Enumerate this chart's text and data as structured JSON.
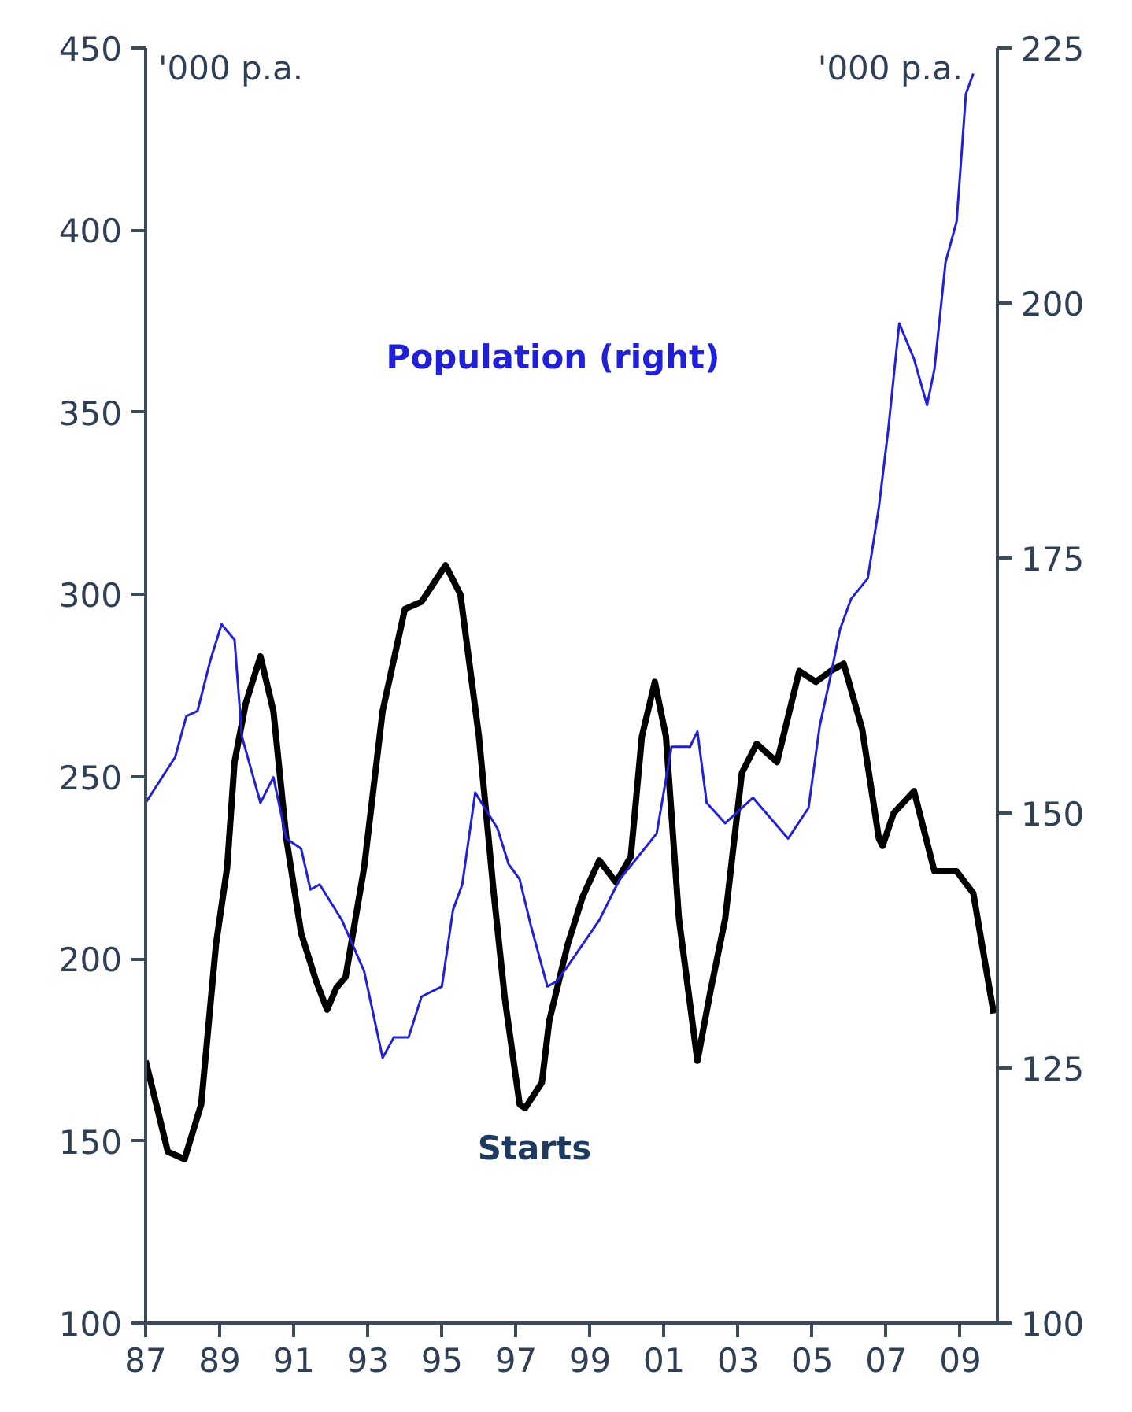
{
  "chart_data": {
    "type": "line",
    "ylabel": "'000 p.a.",
    "y2label": "'000 p.a.",
    "legend": false,
    "grid": false,
    "xlim": [
      1987,
      2010
    ],
    "xticks": [
      {
        "value": 1987,
        "label": "87"
      },
      {
        "value": 1989,
        "label": "89"
      },
      {
        "value": 1991,
        "label": "91"
      },
      {
        "value": 1993,
        "label": "93"
      },
      {
        "value": 1995,
        "label": "95"
      },
      {
        "value": 1997,
        "label": "97"
      },
      {
        "value": 1999,
        "label": "99"
      },
      {
        "value": 2001,
        "label": "01"
      },
      {
        "value": 2003,
        "label": "03"
      },
      {
        "value": 2005,
        "label": "05"
      },
      {
        "value": 2007,
        "label": "07"
      },
      {
        "value": 2009,
        "label": "09"
      }
    ],
    "ylim": [
      100,
      450
    ],
    "yticks": [
      100,
      150,
      200,
      250,
      300,
      350,
      400,
      450
    ],
    "y2lim": [
      100,
      225
    ],
    "y2ticks": [
      100,
      125,
      150,
      175,
      200,
      225
    ],
    "series": [
      {
        "name": "Starts",
        "color": "#000000",
        "x": [
          1987.0,
          1987.6,
          1988.05,
          1988.5,
          1988.9,
          1989.2,
          1989.4,
          1989.7,
          1990.1,
          1990.45,
          1990.8,
          1991.2,
          1991.6,
          1991.9,
          1992.15,
          1992.4,
          1992.9,
          1993.4,
          1994.0,
          1994.45,
          1995.1,
          1995.5,
          1996.0,
          1996.4,
          1996.7,
          1997.1,
          1997.25,
          1997.7,
          1997.9,
          1998.4,
          1998.8,
          1999.25,
          1999.7,
          2000.1,
          2000.4,
          2000.75,
          2001.05,
          2001.4,
          2001.9,
          2002.25,
          2002.65,
          2003.1,
          2003.5,
          2004.05,
          2004.65,
          2005.1,
          2005.5,
          2005.85,
          2006.35,
          2006.8,
          2006.9,
          2007.2,
          2007.75,
          2008.3,
          2008.9,
          2009.35,
          2009.9
        ],
        "values": [
          172,
          147,
          145,
          160,
          204,
          225,
          254,
          270,
          283,
          268,
          233,
          207,
          194,
          186,
          192,
          195,
          225,
          268,
          296,
          298,
          308,
          300,
          261,
          218,
          189,
          160,
          159,
          166,
          183,
          204,
          217,
          227,
          221,
          228,
          261,
          276,
          261,
          211,
          172,
          191,
          211,
          251,
          259,
          254,
          279,
          276,
          279,
          281,
          263,
          233,
          231,
          240,
          246,
          224,
          224,
          218,
          185
        ]
      },
      {
        "name": "Population (right)",
        "color": "#2020d8",
        "axis": "y2",
        "x": [
          1987.0,
          1987.8,
          1988.1,
          1988.4,
          1988.75,
          1989.05,
          1989.4,
          1989.6,
          1990.1,
          1990.45,
          1990.8,
          1991.2,
          1991.45,
          1991.7,
          1992.3,
          1992.9,
          1993.4,
          1993.7,
          1994.1,
          1994.45,
          1995.0,
          1995.3,
          1995.55,
          1995.9,
          1996.5,
          1996.8,
          1997.1,
          1997.4,
          1997.85,
          1998.1,
          1998.4,
          1999.25,
          1999.8,
          2000.25,
          2000.8,
          2001.2,
          2001.7,
          2001.9,
          2002.15,
          2002.65,
          2003.4,
          2004.35,
          2004.9,
          2005.2,
          2005.5,
          2005.75,
          2006.05,
          2006.5,
          2006.8,
          2007.05,
          2007.35,
          2007.75,
          2008.1,
          2008.3,
          2008.6,
          2008.9,
          2009.15,
          2009.35
        ],
        "values": [
          151,
          155.5,
          159.5,
          160,
          165,
          168.5,
          167,
          157.5,
          151,
          153.5,
          147.5,
          146.5,
          142.5,
          143,
          139.5,
          134.5,
          126,
          128,
          128,
          132,
          133,
          140.5,
          143,
          152,
          148.5,
          145,
          143.5,
          139,
          133,
          133.5,
          135,
          139.5,
          143.5,
          145.5,
          148,
          156.5,
          156.5,
          158,
          151,
          149,
          151.5,
          147.5,
          150.5,
          158.5,
          163.5,
          168,
          171,
          173,
          180,
          187.5,
          198,
          194.5,
          190,
          193.5,
          204,
          208,
          220.5,
          222.5
        ]
      }
    ]
  }
}
